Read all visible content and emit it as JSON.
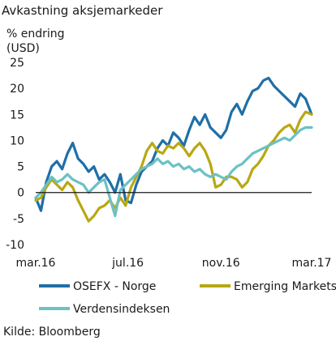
{
  "title": "Avkastning aksjemarkeder",
  "source": "Kilde: Bloomberg",
  "chart_data": {
    "type": "line",
    "ylabel": "% endring\n(USD)",
    "ylim": [
      -10,
      25
    ],
    "yticks": [
      25,
      20,
      15,
      10,
      5,
      0,
      -5,
      -10
    ],
    "x_range": [
      "2016-03-01",
      "2017-03-01"
    ],
    "xticks": [
      {
        "date": "2016-03-01",
        "label": "mar.16"
      },
      {
        "date": "2016-07-01",
        "label": "jul.16"
      },
      {
        "date": "2016-11-01",
        "label": "nov.16"
      },
      {
        "date": "2017-03-01",
        "label": "mar.17"
      }
    ],
    "grid": false,
    "legend": "bottom",
    "series": [
      {
        "name": "OSEFX - Norge",
        "color": "#1f6fa7",
        "points": [
          [
            "2016-03-01",
            -1.0
          ],
          [
            "2016-03-08",
            -3.5
          ],
          [
            "2016-03-15",
            2.0
          ],
          [
            "2016-03-22",
            5.0
          ],
          [
            "2016-03-29",
            6.0
          ],
          [
            "2016-04-05",
            4.5
          ],
          [
            "2016-04-12",
            7.5
          ],
          [
            "2016-04-19",
            9.5
          ],
          [
            "2016-04-26",
            6.5
          ],
          [
            "2016-05-03",
            5.5
          ],
          [
            "2016-05-10",
            4.0
          ],
          [
            "2016-05-17",
            5.0
          ],
          [
            "2016-05-24",
            2.5
          ],
          [
            "2016-05-31",
            3.5
          ],
          [
            "2016-06-07",
            2.0
          ],
          [
            "2016-06-14",
            0.0
          ],
          [
            "2016-06-21",
            3.5
          ],
          [
            "2016-06-28",
            -1.5
          ],
          [
            "2016-07-05",
            -2.0
          ],
          [
            "2016-07-12",
            1.5
          ],
          [
            "2016-07-19",
            4.0
          ],
          [
            "2016-07-26",
            5.0
          ],
          [
            "2016-08-02",
            6.0
          ],
          [
            "2016-08-09",
            8.5
          ],
          [
            "2016-08-16",
            10.0
          ],
          [
            "2016-08-23",
            9.0
          ],
          [
            "2016-08-30",
            11.5
          ],
          [
            "2016-09-06",
            10.5
          ],
          [
            "2016-09-13",
            9.0
          ],
          [
            "2016-09-20",
            12.0
          ],
          [
            "2016-09-27",
            14.5
          ],
          [
            "2016-10-04",
            13.0
          ],
          [
            "2016-10-11",
            15.0
          ],
          [
            "2016-10-18",
            12.5
          ],
          [
            "2016-10-25",
            11.5
          ],
          [
            "2016-11-01",
            10.5
          ],
          [
            "2016-11-08",
            12.0
          ],
          [
            "2016-11-15",
            15.5
          ],
          [
            "2016-11-22",
            17.0
          ],
          [
            "2016-11-29",
            15.0
          ],
          [
            "2016-12-06",
            17.5
          ],
          [
            "2016-12-13",
            19.5
          ],
          [
            "2016-12-20",
            20.0
          ],
          [
            "2016-12-27",
            21.5
          ],
          [
            "2017-01-03",
            22.0
          ],
          [
            "2017-01-10",
            20.5
          ],
          [
            "2017-01-17",
            19.5
          ],
          [
            "2017-01-24",
            18.5
          ],
          [
            "2017-01-31",
            17.5
          ],
          [
            "2017-02-07",
            16.5
          ],
          [
            "2017-02-14",
            19.0
          ],
          [
            "2017-02-21",
            18.0
          ],
          [
            "2017-03-01",
            15.0
          ]
        ]
      },
      {
        "name": "Emerging Markets",
        "color": "#b8a812",
        "points": [
          [
            "2016-03-01",
            -1.5
          ],
          [
            "2016-03-08",
            -1.0
          ],
          [
            "2016-03-15",
            1.0
          ],
          [
            "2016-03-22",
            2.5
          ],
          [
            "2016-03-29",
            1.5
          ],
          [
            "2016-04-05",
            0.5
          ],
          [
            "2016-04-12",
            2.0
          ],
          [
            "2016-04-19",
            1.0
          ],
          [
            "2016-04-26",
            -1.5
          ],
          [
            "2016-05-03",
            -3.5
          ],
          [
            "2016-05-10",
            -5.5
          ],
          [
            "2016-05-17",
            -4.5
          ],
          [
            "2016-05-24",
            -3.0
          ],
          [
            "2016-05-31",
            -2.5
          ],
          [
            "2016-06-07",
            -1.5
          ],
          [
            "2016-06-14",
            -3.0
          ],
          [
            "2016-06-21",
            -1.0
          ],
          [
            "2016-06-28",
            -2.5
          ],
          [
            "2016-07-05",
            1.0
          ],
          [
            "2016-07-12",
            3.0
          ],
          [
            "2016-07-19",
            5.0
          ],
          [
            "2016-07-26",
            8.0
          ],
          [
            "2016-08-02",
            9.5
          ],
          [
            "2016-08-09",
            8.0
          ],
          [
            "2016-08-16",
            7.5
          ],
          [
            "2016-08-23",
            9.0
          ],
          [
            "2016-08-30",
            8.5
          ],
          [
            "2016-09-06",
            9.5
          ],
          [
            "2016-09-13",
            8.5
          ],
          [
            "2016-09-20",
            7.0
          ],
          [
            "2016-09-27",
            8.5
          ],
          [
            "2016-10-04",
            9.5
          ],
          [
            "2016-10-11",
            8.0
          ],
          [
            "2016-10-18",
            5.5
          ],
          [
            "2016-10-25",
            1.0
          ],
          [
            "2016-11-01",
            1.5
          ],
          [
            "2016-11-08",
            3.0
          ],
          [
            "2016-11-15",
            3.0
          ],
          [
            "2016-11-22",
            2.5
          ],
          [
            "2016-11-29",
            1.0
          ],
          [
            "2016-12-06",
            2.0
          ],
          [
            "2016-12-13",
            4.5
          ],
          [
            "2016-12-20",
            5.5
          ],
          [
            "2016-12-27",
            7.0
          ],
          [
            "2017-01-03",
            9.0
          ],
          [
            "2017-01-10",
            10.0
          ],
          [
            "2017-01-17",
            11.5
          ],
          [
            "2017-01-24",
            12.5
          ],
          [
            "2017-01-31",
            13.0
          ],
          [
            "2017-02-07",
            11.5
          ],
          [
            "2017-02-14",
            14.0
          ],
          [
            "2017-02-21",
            15.5
          ],
          [
            "2017-03-01",
            15.0
          ]
        ]
      },
      {
        "name": "Verdensindeksen",
        "color": "#6cc1c4",
        "points": [
          [
            "2016-03-01",
            -1.0
          ],
          [
            "2016-03-08",
            0.0
          ],
          [
            "2016-03-15",
            1.5
          ],
          [
            "2016-03-22",
            3.0
          ],
          [
            "2016-03-29",
            2.0
          ],
          [
            "2016-04-05",
            2.5
          ],
          [
            "2016-04-12",
            3.5
          ],
          [
            "2016-04-19",
            2.5
          ],
          [
            "2016-04-26",
            2.0
          ],
          [
            "2016-05-03",
            1.5
          ],
          [
            "2016-05-10",
            0.0
          ],
          [
            "2016-05-17",
            1.0
          ],
          [
            "2016-05-24",
            2.0
          ],
          [
            "2016-05-31",
            2.5
          ],
          [
            "2016-06-07",
            -1.0
          ],
          [
            "2016-06-14",
            -4.5
          ],
          [
            "2016-06-21",
            0.5
          ],
          [
            "2016-06-28",
            1.5
          ],
          [
            "2016-07-05",
            2.5
          ],
          [
            "2016-07-12",
            3.5
          ],
          [
            "2016-07-19",
            4.5
          ],
          [
            "2016-07-26",
            5.0
          ],
          [
            "2016-08-02",
            5.5
          ],
          [
            "2016-08-09",
            6.5
          ],
          [
            "2016-08-16",
            5.5
          ],
          [
            "2016-08-23",
            6.0
          ],
          [
            "2016-08-30",
            5.0
          ],
          [
            "2016-09-06",
            5.5
          ],
          [
            "2016-09-13",
            4.5
          ],
          [
            "2016-09-20",
            5.0
          ],
          [
            "2016-09-27",
            4.0
          ],
          [
            "2016-10-04",
            4.5
          ],
          [
            "2016-10-11",
            3.5
          ],
          [
            "2016-10-18",
            3.0
          ],
          [
            "2016-10-25",
            3.5
          ],
          [
            "2016-11-01",
            3.0
          ],
          [
            "2016-11-08",
            2.5
          ],
          [
            "2016-11-15",
            4.0
          ],
          [
            "2016-11-22",
            5.0
          ],
          [
            "2016-11-29",
            5.5
          ],
          [
            "2016-12-06",
            6.5
          ],
          [
            "2016-12-13",
            7.5
          ],
          [
            "2016-12-20",
            8.0
          ],
          [
            "2016-12-27",
            8.5
          ],
          [
            "2017-01-03",
            9.0
          ],
          [
            "2017-01-10",
            9.5
          ],
          [
            "2017-01-17",
            10.0
          ],
          [
            "2017-01-24",
            10.5
          ],
          [
            "2017-01-31",
            10.0
          ],
          [
            "2017-02-07",
            11.0
          ],
          [
            "2017-02-14",
            12.0
          ],
          [
            "2017-02-21",
            12.5
          ],
          [
            "2017-03-01",
            12.5
          ]
        ]
      }
    ]
  }
}
